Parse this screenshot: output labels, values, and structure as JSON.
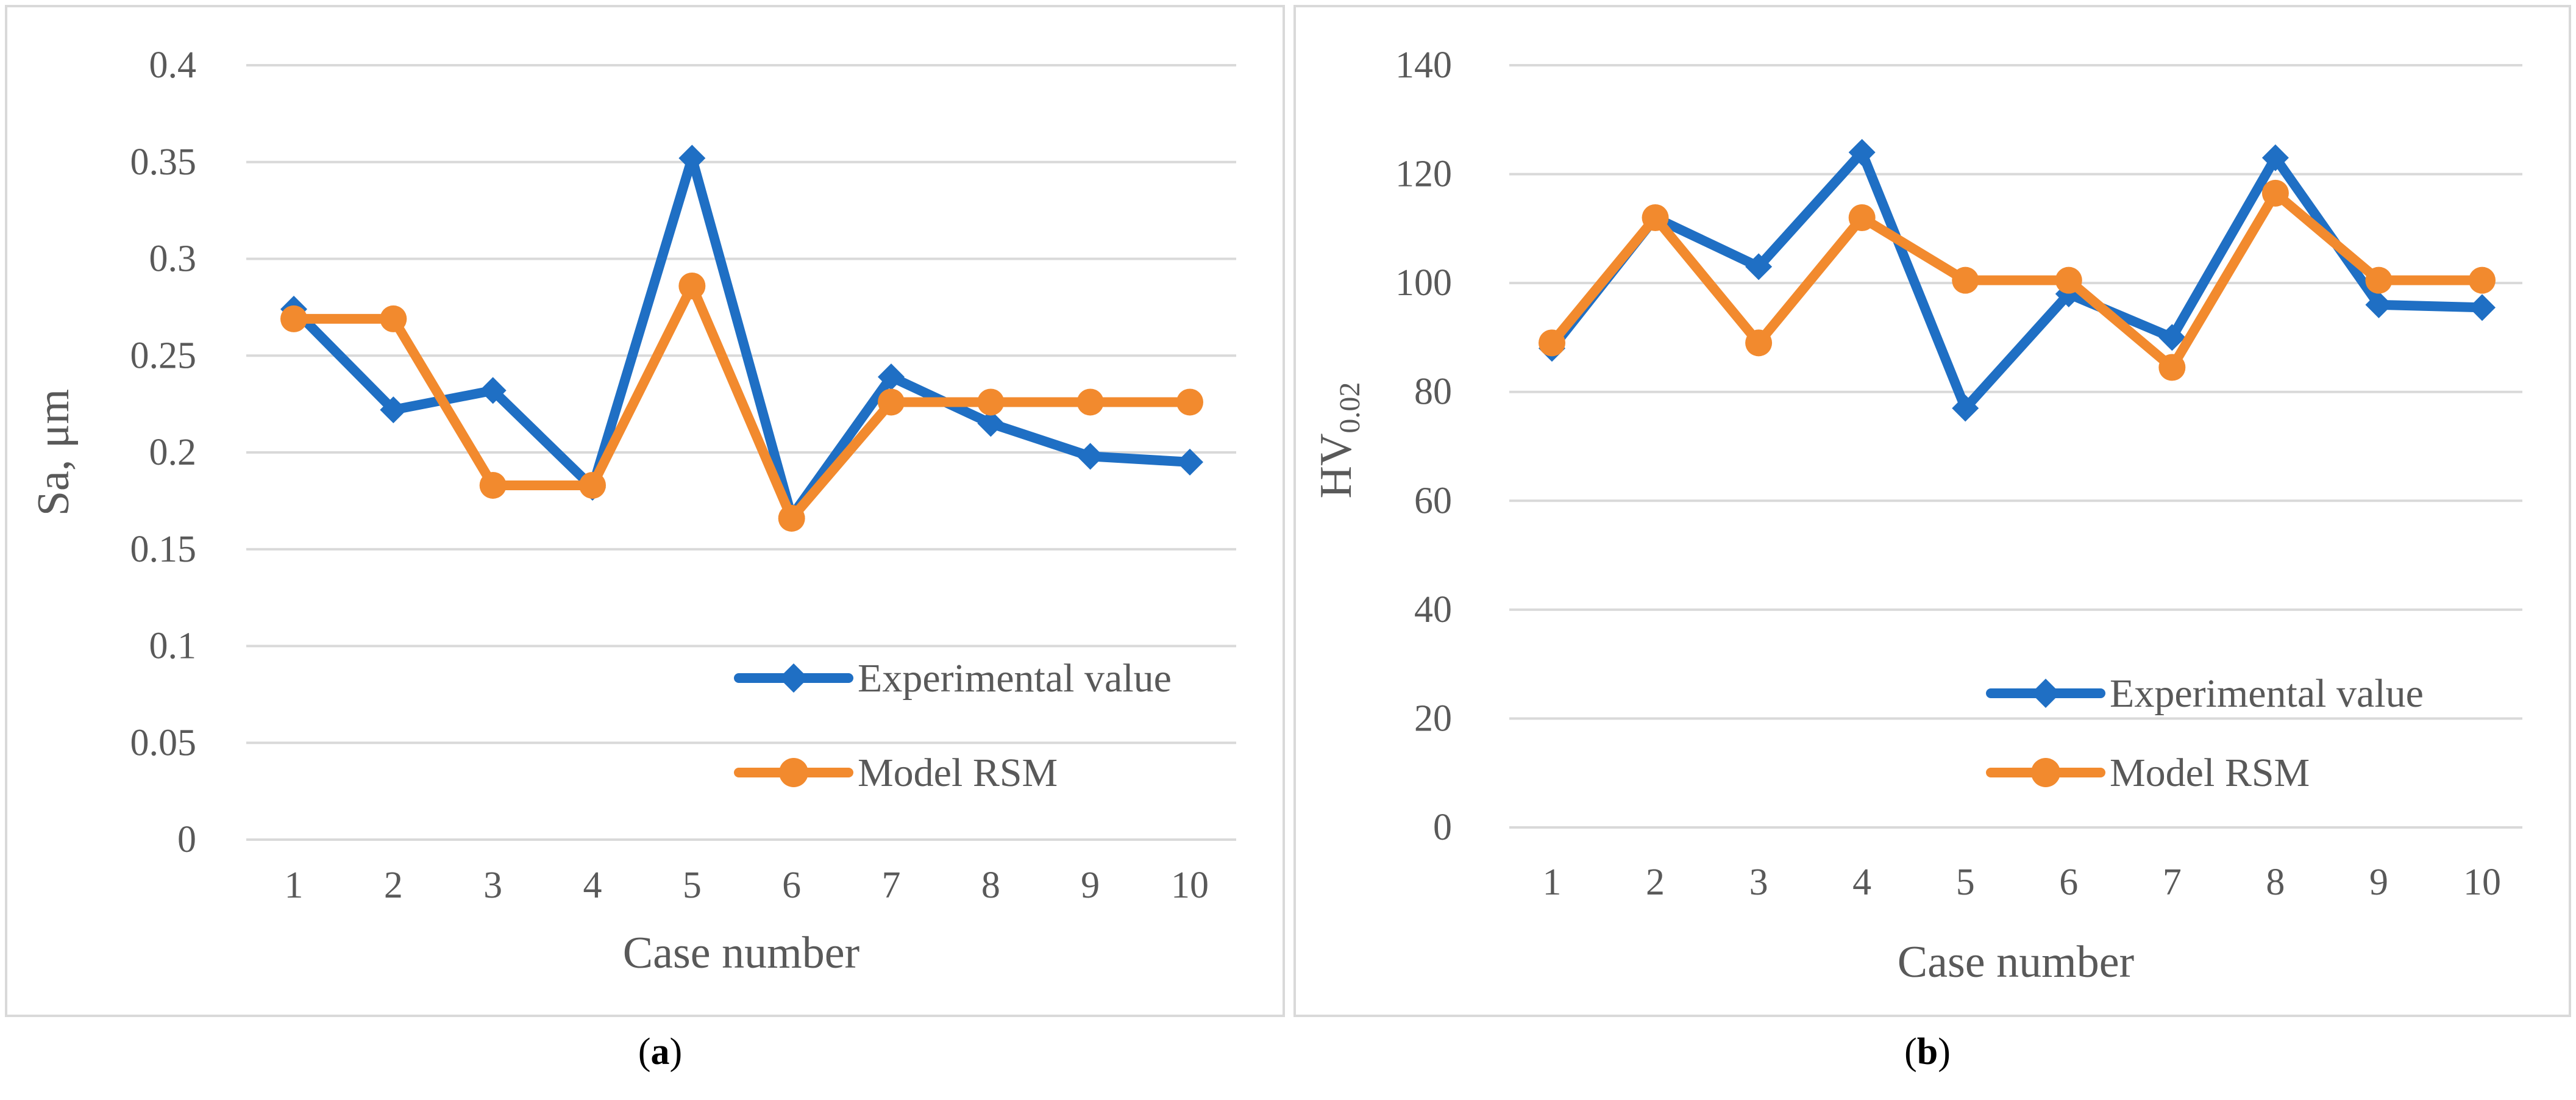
{
  "chart_data": [
    {
      "panel": "a",
      "type": "line",
      "categories": [
        "1",
        "2",
        "3",
        "4",
        "5",
        "6",
        "7",
        "8",
        "9",
        "10"
      ],
      "series": [
        {
          "name": "Experimental value",
          "color": "#1f6fc4",
          "marker": "diamond",
          "values": [
            0.274,
            0.222,
            0.232,
            0.182,
            0.352,
            0.167,
            0.239,
            0.215,
            0.198,
            0.195
          ]
        },
        {
          "name": "Model RSM",
          "color": "#f28a2e",
          "marker": "circle",
          "values": [
            0.269,
            0.269,
            0.183,
            0.183,
            0.286,
            0.166,
            0.226,
            0.226,
            0.226,
            0.226
          ]
        }
      ],
      "yticks": [
        "0",
        "0.05",
        "0.1",
        "0.15",
        "0.2",
        "0.25",
        "0.3",
        "0.35",
        "0.4"
      ],
      "ylim": [
        0,
        0.4
      ],
      "xlabel": "Case number",
      "ylabel": "Sa, μm",
      "grid": true,
      "legend": "bottom-right"
    },
    {
      "panel": "b",
      "type": "line",
      "categories": [
        "1",
        "2",
        "3",
        "4",
        "5",
        "6",
        "7",
        "8",
        "9",
        "10"
      ],
      "series": [
        {
          "name": "Experimental value",
          "color": "#1f6fc4",
          "marker": "diamond",
          "values": [
            88,
            112,
            103,
            124,
            77,
            98,
            90,
            123,
            96,
            95.5
          ]
        },
        {
          "name": "Model RSM",
          "color": "#f28a2e",
          "marker": "circle",
          "values": [
            89,
            112,
            89,
            112,
            100.5,
            100.5,
            84.5,
            116.5,
            100.5,
            100.5
          ]
        }
      ],
      "yticks": [
        "0",
        "20",
        "40",
        "60",
        "80",
        "100",
        "120",
        "140"
      ],
      "ylim": [
        0,
        140
      ],
      "xlabel": "Case number",
      "ylabel_main": "HV",
      "ylabel_sub": "0.02",
      "grid": true,
      "legend": "bottom-right"
    }
  ],
  "captions": [
    {
      "open": "(",
      "letter": "a",
      "close": ")"
    },
    {
      "open": "(",
      "letter": "b",
      "close": ")"
    }
  ]
}
